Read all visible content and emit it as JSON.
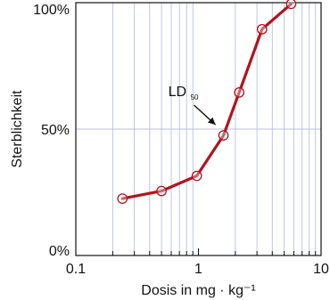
{
  "chart_data": {
    "type": "line",
    "title": "",
    "xlabel": "Dosis in mg · kg⁻¹",
    "ylabel": "Sterblichkeit",
    "xscale": "log",
    "xlim": [
      0.1,
      10
    ],
    "ylim": [
      0,
      100
    ],
    "grid": true,
    "xticks": [
      {
        "value": 0.1,
        "label": "0.1"
      },
      {
        "value": 1,
        "label": "1"
      },
      {
        "value": 10,
        "label": "10"
      }
    ],
    "yticks": [
      {
        "value": 0,
        "label": "0%"
      },
      {
        "value": 50,
        "label": "50%"
      },
      {
        "value": 100,
        "label": "100%"
      }
    ],
    "series": [
      {
        "x": [
          0.24,
          0.5,
          0.97,
          1.6,
          2.15,
          3.3,
          5.7
        ],
        "y": [
          22.5,
          25.5,
          31.5,
          47.5,
          64.5,
          89.5,
          99.5
        ]
      }
    ],
    "annotations": [
      {
        "label": "LD",
        "subscript": "50",
        "x": 1.6,
        "y": 47.5
      }
    ],
    "colors": {
      "series": "#b0141e",
      "grid": "#b8bfe0",
      "axis": "#111111"
    }
  }
}
